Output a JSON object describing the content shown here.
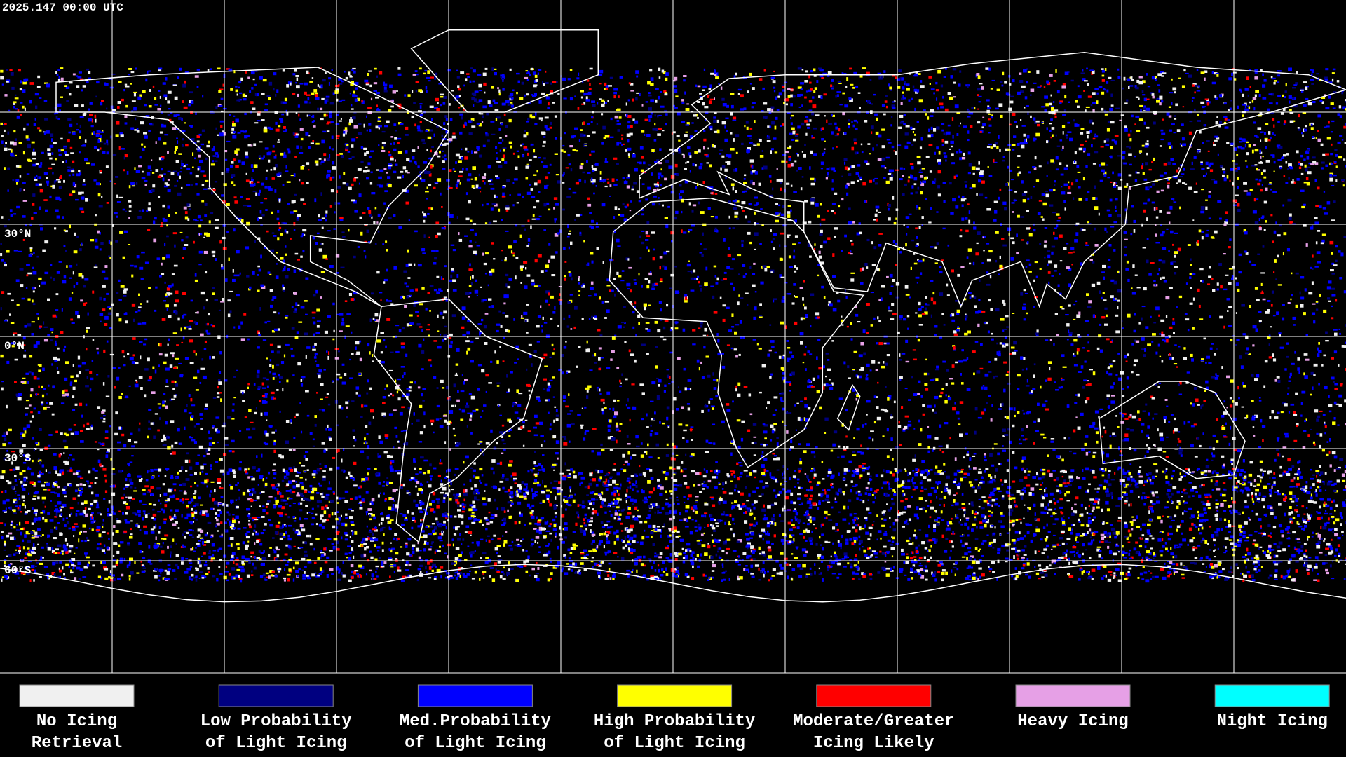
{
  "header": {
    "title": "2025.147 00:00 UTC"
  },
  "map": {
    "latitude_labels": [
      "30°N",
      "0°N",
      "30°S",
      "60°S"
    ]
  },
  "legend": [
    {
      "color": "#f0f0f0",
      "label": [
        "No Icing",
        "Retrieval"
      ]
    },
    {
      "color": "#000080",
      "label": [
        "Low Probability",
        "of Light Icing"
      ]
    },
    {
      "color": "#0000ff",
      "label": [
        "Med.Probability",
        "of Light Icing"
      ]
    },
    {
      "color": "#ffff00",
      "label": [
        "High Probability",
        "of Light Icing"
      ]
    },
    {
      "color": "#ff0000",
      "label": [
        "Moderate/Greater",
        "Icing Likely"
      ]
    },
    {
      "color": "#e6a0e6",
      "label": [
        "Heavy Icing",
        ""
      ]
    },
    {
      "color": "#00ffff",
      "label": [
        "Night Icing",
        ""
      ]
    }
  ]
}
